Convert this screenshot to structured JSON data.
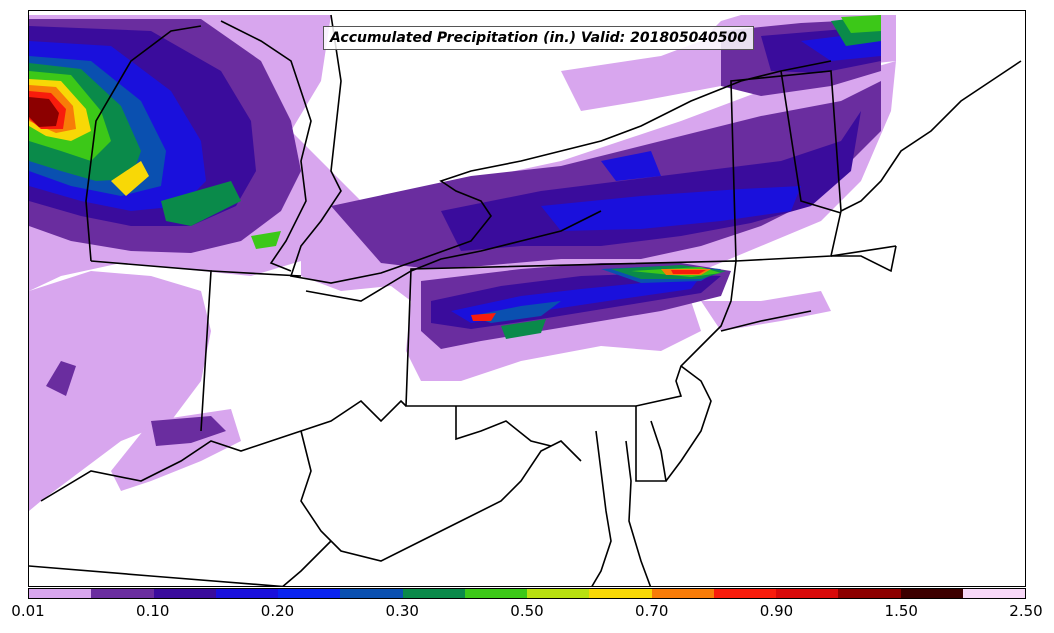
{
  "map": {
    "title": "Accumulated Precipitation (in.) Valid: 201805040500",
    "field": "accumulated-precipitation",
    "region": "northeastern-united-states",
    "layers": [
      "precipitation-shading",
      "state-borders",
      "coastlines",
      "great-lakes-shorelines"
    ]
  },
  "colorbar": {
    "colors": [
      "#d8a6ee",
      "#6a2d9f",
      "#3a0c9c",
      "#1a10dc",
      "#0a24f0",
      "#0a50b0",
      "#0a8a4a",
      "#3cc818",
      "#b8e010",
      "#f8d806",
      "#f87c08",
      "#f81c0c",
      "#d80a0a",
      "#8c0000",
      "#3c0000",
      "#f8d8f8"
    ],
    "labels": [
      {
        "text": "0.01",
        "index": 0
      },
      {
        "text": "0.10",
        "index": 2
      },
      {
        "text": "0.20",
        "index": 4
      },
      {
        "text": "0.30",
        "index": 6
      },
      {
        "text": "0.50",
        "index": 8
      },
      {
        "text": "0.70",
        "index": 10
      },
      {
        "text": "0.90",
        "index": 12
      },
      {
        "text": "1.50",
        "index": 14
      },
      {
        "text": "2.50",
        "index": 16
      }
    ]
  }
}
